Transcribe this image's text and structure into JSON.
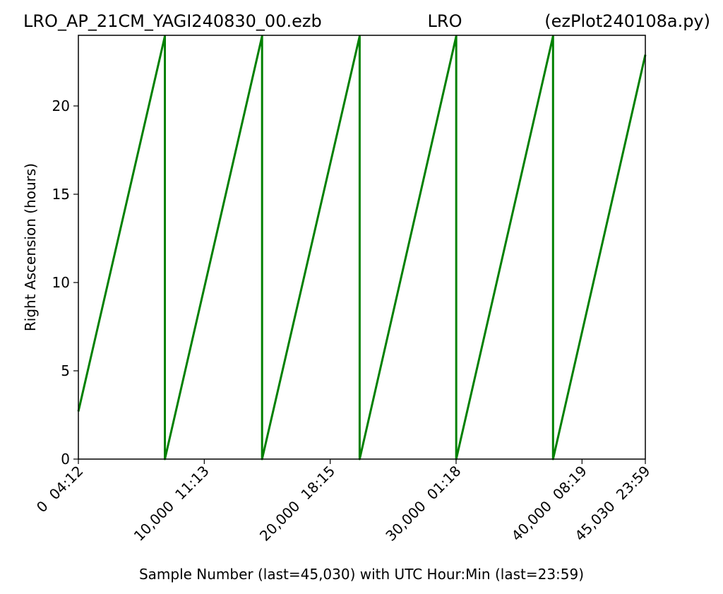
{
  "chart_data": {
    "type": "line",
    "title_left": "LRO_AP_21CM_YAGI240830_00.ezb",
    "title_center": "LRO",
    "title_right": "(ezPlot240108a.py)",
    "xlabel": "Sample Number (last=45,030) with UTC Hour:Min (last=23:59)",
    "ylabel": "Right Ascension (hours)",
    "xlim": [
      0,
      45030
    ],
    "ylim": [
      0,
      24
    ],
    "grid": false,
    "x_ticks": [
      {
        "value": 0,
        "label": "0  04:12"
      },
      {
        "value": 10000,
        "label": "10,000  11:13"
      },
      {
        "value": 20000,
        "label": "20,000  18:15"
      },
      {
        "value": 30000,
        "label": "30,000  01:18"
      },
      {
        "value": 40000,
        "label": "40,000  08:19"
      },
      {
        "value": 45030,
        "label": "45,030  23:59"
      }
    ],
    "y_ticks": [
      {
        "value": 0,
        "label": "0"
      },
      {
        "value": 5,
        "label": "5"
      },
      {
        "value": 10,
        "label": "10"
      },
      {
        "value": 15,
        "label": "15"
      },
      {
        "value": 20,
        "label": "20"
      }
    ],
    "series": [
      {
        "color": "#008000",
        "x": [
          0,
          6870,
          6870,
          14590,
          14590,
          22340,
          22340,
          30010,
          30010,
          37700,
          37700,
          45030
        ],
        "y": [
          2.7,
          23.95,
          0,
          23.95,
          0,
          23.95,
          0,
          23.95,
          0,
          23.95,
          0,
          22.9
        ]
      }
    ]
  }
}
